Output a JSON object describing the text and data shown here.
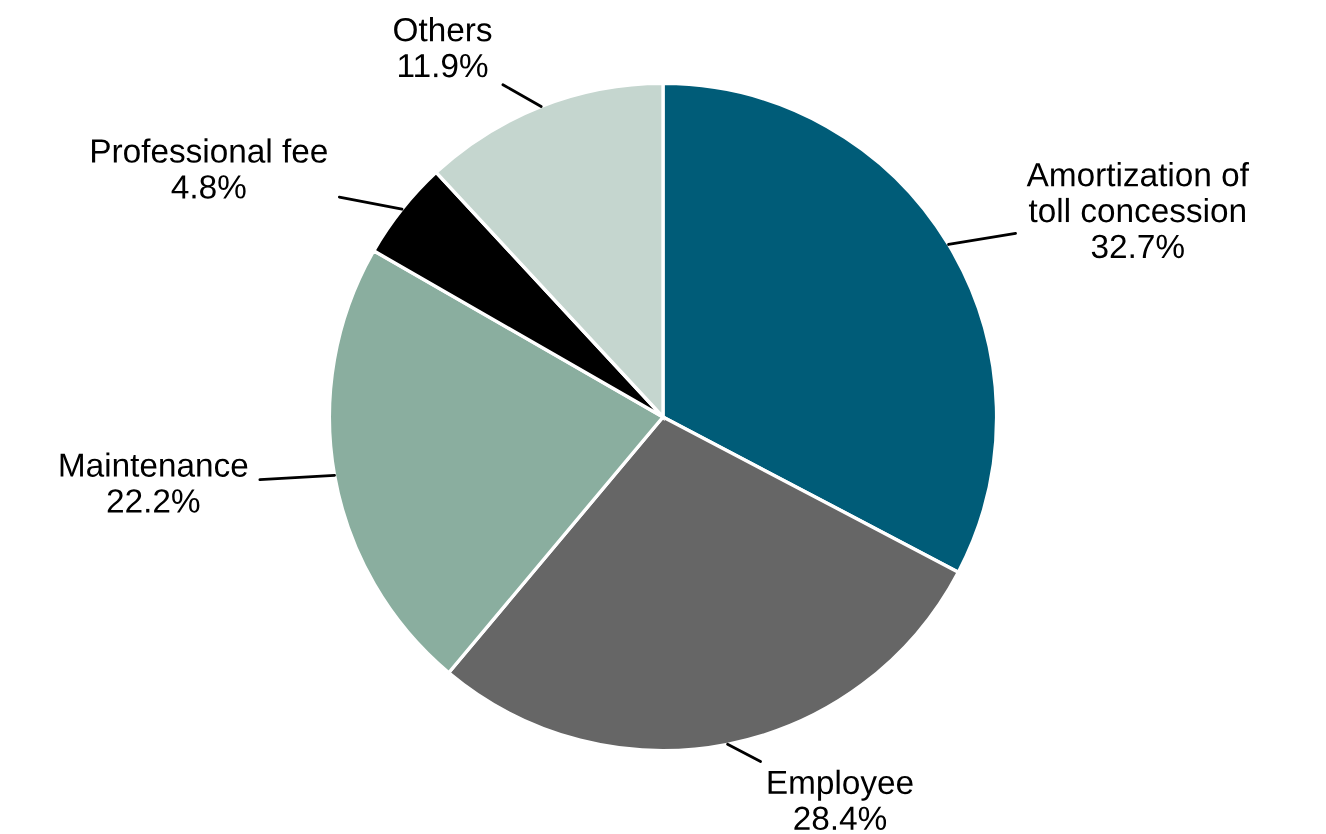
{
  "chart_data": {
    "type": "pie",
    "categories": [
      "Amortization of\ntoll concession",
      "Employee",
      "Maintenance",
      "Professional fee",
      "Others"
    ],
    "values": [
      32.7,
      28.4,
      22.2,
      4.8,
      11.9
    ],
    "colors": [
      "#005c78",
      "#666666",
      "#8aae9f",
      "#000000",
      "#c5d6cf"
    ],
    "value_labels": [
      "32.7%",
      "28.4%",
      "22.2%",
      "4.8%",
      "11.9%"
    ]
  }
}
